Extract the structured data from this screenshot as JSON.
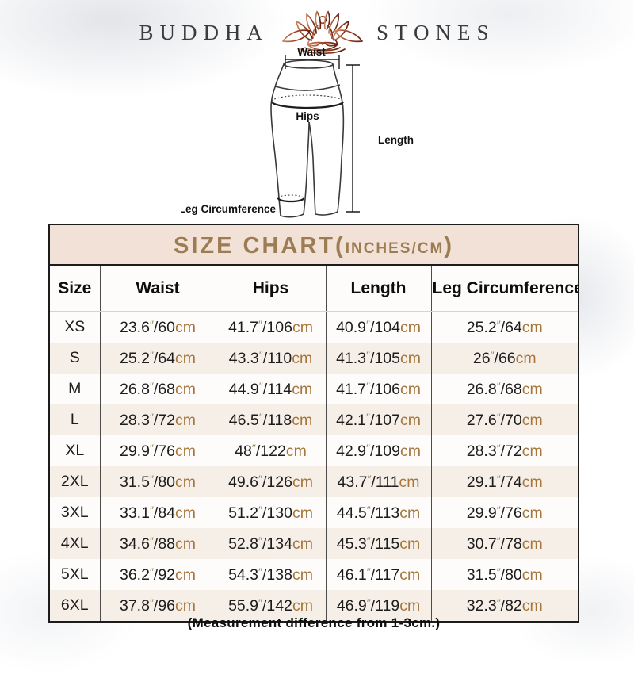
{
  "brand": {
    "name_left": "BUDDHA",
    "name_right": "STONES",
    "icon": "lotus-meditation-icon"
  },
  "diagram": {
    "waist_label": "Waist",
    "hips_label": "Hips",
    "length_label": "Length",
    "leg_label": "Leg Circumference"
  },
  "size_chart": {
    "title_main": "SIZE CHART",
    "title_open": "(",
    "title_units": "INCHES/CM",
    "title_close": ")",
    "columns": [
      "Size",
      "Waist",
      "Hips",
      "Length",
      "Leg Circumference"
    ],
    "unit_inch": "″",
    "separator": "/",
    "unit_cm": "cm",
    "rows": [
      {
        "size": "XS",
        "waist": {
          "in": "23.6",
          "cm": "60"
        },
        "hips": {
          "in": "41.7",
          "cm": "106"
        },
        "length": {
          "in": "40.9",
          "cm": "104"
        },
        "leg": {
          "in": "25.2",
          "cm": "64"
        }
      },
      {
        "size": "S",
        "waist": {
          "in": "25.2",
          "cm": "64"
        },
        "hips": {
          "in": "43.3",
          "cm": "110"
        },
        "length": {
          "in": "41.3",
          "cm": "105"
        },
        "leg": {
          "in": "26",
          "cm": "66"
        }
      },
      {
        "size": "M",
        "waist": {
          "in": "26.8",
          "cm": "68"
        },
        "hips": {
          "in": "44.9",
          "cm": "114"
        },
        "length": {
          "in": "41.7",
          "cm": "106"
        },
        "leg": {
          "in": "26.8",
          "cm": "68"
        }
      },
      {
        "size": "L",
        "waist": {
          "in": "28.3",
          "cm": "72"
        },
        "hips": {
          "in": "46.5",
          "cm": "118"
        },
        "length": {
          "in": "42.1",
          "cm": "107"
        },
        "leg": {
          "in": "27.6",
          "cm": "70"
        }
      },
      {
        "size": "XL",
        "waist": {
          "in": "29.9",
          "cm": "76"
        },
        "hips": {
          "in": "48",
          "cm": "122"
        },
        "length": {
          "in": "42.9",
          "cm": "109"
        },
        "leg": {
          "in": "28.3",
          "cm": "72"
        }
      },
      {
        "size": "2XL",
        "waist": {
          "in": "31.5",
          "cm": "80"
        },
        "hips": {
          "in": "49.6",
          "cm": "126"
        },
        "length": {
          "in": "43.7",
          "cm": "111"
        },
        "leg": {
          "in": "29.1",
          "cm": "74"
        }
      },
      {
        "size": "3XL",
        "waist": {
          "in": "33.1",
          "cm": "84"
        },
        "hips": {
          "in": "51.2",
          "cm": "130"
        },
        "length": {
          "in": "44.5",
          "cm": "113"
        },
        "leg": {
          "in": "29.9",
          "cm": "76"
        }
      },
      {
        "size": "4XL",
        "waist": {
          "in": "34.6",
          "cm": "88"
        },
        "hips": {
          "in": "52.8",
          "cm": "134"
        },
        "length": {
          "in": "45.3",
          "cm": "115"
        },
        "leg": {
          "in": "30.7",
          "cm": "78"
        }
      },
      {
        "size": "5XL",
        "waist": {
          "in": "36.2",
          "cm": "92"
        },
        "hips": {
          "in": "54.3",
          "cm": "138"
        },
        "length": {
          "in": "46.1",
          "cm": "117"
        },
        "leg": {
          "in": "31.5",
          "cm": "80"
        }
      },
      {
        "size": "6XL",
        "waist": {
          "in": "37.8",
          "cm": "96"
        },
        "hips": {
          "in": "55.9",
          "cm": "142"
        },
        "length": {
          "in": "46.9",
          "cm": "119"
        },
        "leg": {
          "in": "32.3",
          "cm": "82"
        }
      }
    ]
  },
  "footer_note": "(Measurement difference from 1-3cm.)",
  "colors": {
    "accent_tan": "#a6763c",
    "inch_mark_tan": "#a08a68",
    "title_brown": "#9c7c52",
    "band_bg": "#f1e1d6",
    "row_alt_bg": "#f6efe8",
    "logo_gradient_light": "#c8855f",
    "logo_gradient_dark": "#661f10"
  },
  "chart_data": {
    "type": "table",
    "title": "SIZE CHART(INCHES/CM)",
    "columns": [
      "Size",
      "Waist",
      "Hips",
      "Length",
      "Leg Circumference"
    ],
    "rows": [
      [
        "XS",
        "23.6″/60cm",
        "41.7″/106cm",
        "40.9″/104cm",
        "25.2″/64cm"
      ],
      [
        "S",
        "25.2″/64cm",
        "43.3″/110cm",
        "41.3″/105cm",
        "26″/66cm"
      ],
      [
        "M",
        "26.8″/68cm",
        "44.9″/114cm",
        "41.7″/106cm",
        "26.8″/68cm"
      ],
      [
        "L",
        "28.3″/72cm",
        "46.5″/118cm",
        "42.1″/107cm",
        "27.6″/70cm"
      ],
      [
        "XL",
        "29.9″/76cm",
        "48″/122cm",
        "42.9″/109cm",
        "28.3″/72cm"
      ],
      [
        "2XL",
        "31.5″/80cm",
        "49.6″/126cm",
        "43.7″/111cm",
        "29.1″/74cm"
      ],
      [
        "3XL",
        "33.1″/84cm",
        "51.2″/130cm",
        "44.5″/113cm",
        "29.9″/76cm"
      ],
      [
        "4XL",
        "34.6″/88cm",
        "52.8″/134cm",
        "45.3″/115cm",
        "30.7″/78cm"
      ],
      [
        "5XL",
        "36.2″/92cm",
        "54.3″/138cm",
        "46.1″/117cm",
        "31.5″/80cm"
      ],
      [
        "6XL",
        "37.8″/96cm",
        "55.9″/142cm",
        "46.9″/119cm",
        "32.3″/82cm"
      ]
    ],
    "footnote": "(Measurement difference from 1-3cm.)"
  }
}
